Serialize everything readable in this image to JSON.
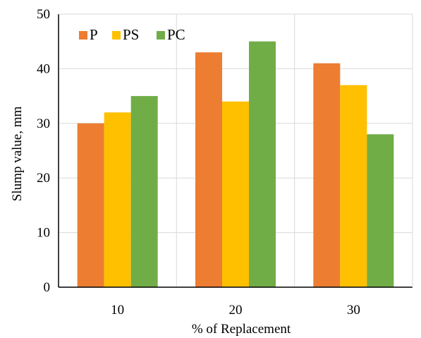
{
  "chart_data": {
    "type": "bar",
    "title": "",
    "xlabel": "% of Replacement",
    "ylabel": "Slump value, mm",
    "categories": [
      "10",
      "20",
      "30"
    ],
    "series": [
      {
        "name": "P",
        "color": "#ED7D31",
        "values": [
          30,
          43,
          41
        ]
      },
      {
        "name": "PS",
        "color": "#FFC000",
        "values": [
          32,
          34,
          37
        ]
      },
      {
        "name": "PC",
        "color": "#70AD47",
        "values": [
          35,
          45,
          28
        ]
      }
    ],
    "ylim": [
      0,
      50
    ],
    "yticks": [
      "0",
      "10",
      "20",
      "30",
      "40",
      "50"
    ],
    "grid": {
      "horizontal": true,
      "vertical_category_separators": true
    },
    "legend_position": "top-left"
  }
}
